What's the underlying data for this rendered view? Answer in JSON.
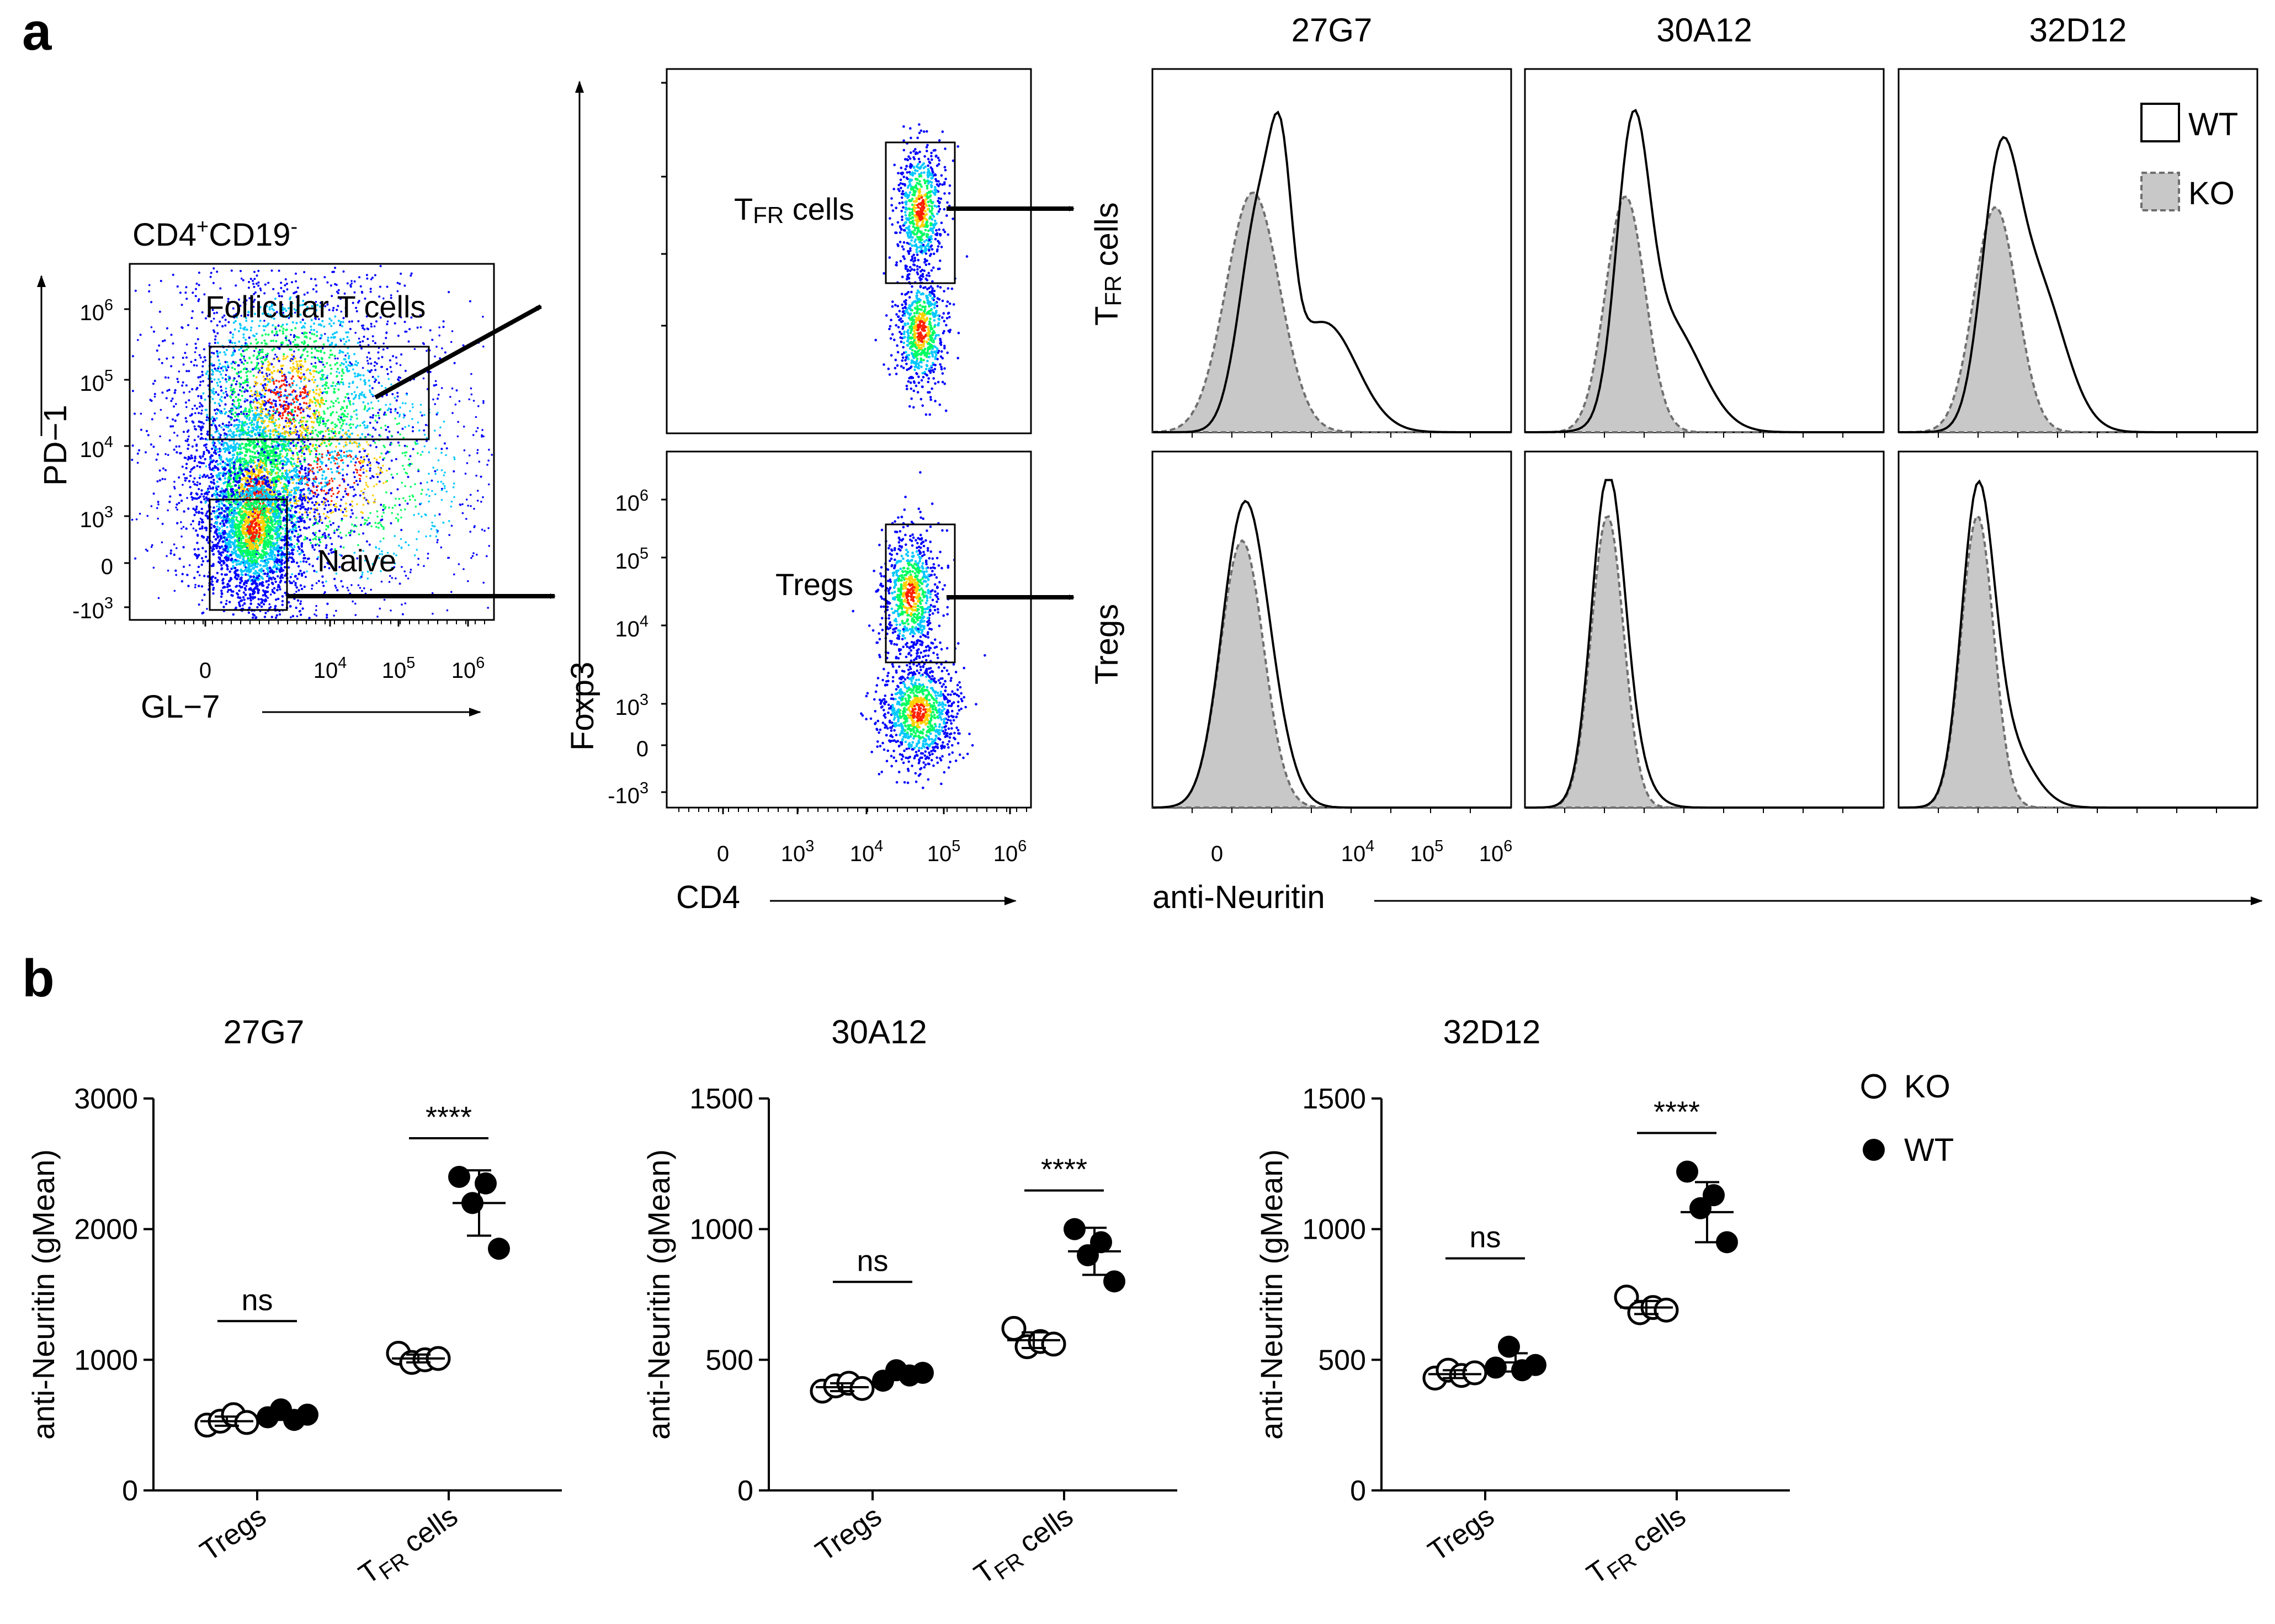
{
  "panel_a": {
    "letter": "a",
    "gate_plot": {
      "title": "CD4+CD19-",
      "title_main": "CD4",
      "title_sup1": "+",
      "title_mid": "CD19",
      "title_sup2": "-",
      "ylabel": "PD−1",
      "xlabel": "GL−7",
      "y_ticks": [
        {
          "base": "10",
          "exp": "6"
        },
        {
          "base": "10",
          "exp": "5"
        },
        {
          "base": "10",
          "exp": "4"
        },
        {
          "base": "10",
          "exp": "3"
        },
        {
          "base": "0",
          "exp": ""
        },
        {
          "base": "-10",
          "exp": "3"
        }
      ],
      "x_ticks": [
        {
          "base": "0",
          "exp": ""
        },
        {
          "base": "10",
          "exp": "4"
        },
        {
          "base": "10",
          "exp": "5"
        },
        {
          "base": "10",
          "exp": "6"
        }
      ],
      "gate_follicular": "Follicular T cells",
      "gate_naive": "Naive"
    },
    "foxp3_plots": {
      "ylabel": "Foxp3",
      "xlabel": "CD4",
      "top_gate_main": "T",
      "top_gate_sub": "FR",
      "top_gate_rest": " cells",
      "bottom_gate": "Tregs",
      "y_ticks": [
        {
          "base": "10",
          "exp": "6"
        },
        {
          "base": "10",
          "exp": "5"
        },
        {
          "base": "10",
          "exp": "4"
        },
        {
          "base": "10",
          "exp": "3"
        },
        {
          "base": "0",
          "exp": ""
        },
        {
          "base": "-10",
          "exp": "3"
        }
      ],
      "x_ticks": [
        {
          "base": "0",
          "exp": ""
        },
        {
          "base": "10",
          "exp": "3"
        },
        {
          "base": "10",
          "exp": "4"
        },
        {
          "base": "10",
          "exp": "5"
        },
        {
          "base": "10",
          "exp": "6"
        }
      ]
    },
    "histograms": {
      "clones": [
        "27G7",
        "30A12",
        "32D12"
      ],
      "row_top_main": "T",
      "row_top_sub": "FR",
      "row_top_rest": " cells",
      "row_bottom": "Tregs",
      "xlabel": "anti-Neuritin",
      "x_ticks": [
        {
          "base": "0",
          "exp": ""
        },
        {
          "base": "10",
          "exp": "4"
        },
        {
          "base": "10",
          "exp": "5"
        },
        {
          "base": "10",
          "exp": "6"
        }
      ],
      "legend": [
        {
          "label": "WT",
          "style": "open-solid"
        },
        {
          "label": "KO",
          "style": "gray-dashed"
        }
      ]
    }
  },
  "panel_b": {
    "letter": "b",
    "legend": [
      {
        "label": "KO",
        "marker": "open"
      },
      {
        "label": "WT",
        "marker": "filled"
      }
    ]
  },
  "chart_data": [
    {
      "type": "scatter",
      "title": "27G7",
      "ylabel": "anti-Neuritin (gMean)",
      "xlabel": "",
      "categories": [
        {
          "main": "Tregs",
          "sub": "",
          "rest": ""
        },
        {
          "main": "T",
          "sub": "FR",
          "rest": " cells"
        }
      ],
      "ylim": [
        0,
        3000
      ],
      "yticks": [
        0,
        1000,
        2000,
        3000
      ],
      "series": [
        {
          "name": "KO",
          "marker": "open",
          "groups": [
            [
              500,
              530,
              580,
              520
            ],
            [
              1050,
              980,
              1000,
              1010
            ]
          ],
          "means": [
            530,
            1010
          ],
          "sd": [
            35,
            30
          ]
        },
        {
          "name": "WT",
          "marker": "filled",
          "groups": [
            [
              560,
              620,
              540,
              580
            ],
            [
              2400,
              2200,
              2350,
              1850
            ]
          ],
          "means": [
            575,
            2200
          ],
          "sd": [
            35,
            250
          ]
        }
      ],
      "comparisons": [
        {
          "category": 0,
          "label": "ns"
        },
        {
          "category": 1,
          "label": "****"
        }
      ]
    },
    {
      "type": "scatter",
      "title": "30A12",
      "ylabel": "anti-Neuritin (gMean)",
      "xlabel": "",
      "categories": [
        {
          "main": "Tregs",
          "sub": "",
          "rest": ""
        },
        {
          "main": "T",
          "sub": "FR",
          "rest": " cells"
        }
      ],
      "ylim": [
        0,
        1500
      ],
      "yticks": [
        0,
        500,
        1000,
        1500
      ],
      "series": [
        {
          "name": "KO",
          "marker": "open",
          "groups": [
            [
              380,
              400,
              410,
              390
            ],
            [
              620,
              550,
              570,
              560
            ]
          ],
          "means": [
            395,
            575
          ],
          "sd": [
            15,
            30
          ]
        },
        {
          "name": "WT",
          "marker": "filled",
          "groups": [
            [
              420,
              460,
              440,
              450
            ],
            [
              1000,
              900,
              950,
              800
            ]
          ],
          "means": [
            445,
            915
          ],
          "sd": [
            15,
            90
          ]
        }
      ],
      "comparisons": [
        {
          "category": 0,
          "label": "ns"
        },
        {
          "category": 1,
          "label": "****"
        }
      ]
    },
    {
      "type": "scatter",
      "title": "32D12",
      "ylabel": "anti-Neuritin (gMean)",
      "xlabel": "",
      "categories": [
        {
          "main": "Tregs",
          "sub": "",
          "rest": ""
        },
        {
          "main": "T",
          "sub": "FR",
          "rest": " cells"
        }
      ],
      "ylim": [
        0,
        1500
      ],
      "yticks": [
        0,
        500,
        1000,
        1500
      ],
      "series": [
        {
          "name": "KO",
          "marker": "open",
          "groups": [
            [
              430,
              460,
              440,
              450
            ],
            [
              740,
              680,
              700,
              690
            ]
          ],
          "means": [
            445,
            700
          ],
          "sd": [
            15,
            25
          ]
        },
        {
          "name": "WT",
          "marker": "filled",
          "groups": [
            [
              470,
              550,
              460,
              480
            ],
            [
              1220,
              1080,
              1130,
              950
            ]
          ],
          "means": [
            490,
            1065
          ],
          "sd": [
            35,
            115
          ]
        }
      ],
      "comparisons": [
        {
          "category": 0,
          "label": "ns"
        },
        {
          "category": 1,
          "label": "****"
        }
      ]
    }
  ],
  "colors": {
    "ink": "#000000",
    "ko_fill": "#c8c8c8",
    "ko_stroke": "#6e6e6e",
    "density_low": "#0000ff",
    "density_mid": "#00ff60",
    "density_high": "#ff2000"
  }
}
